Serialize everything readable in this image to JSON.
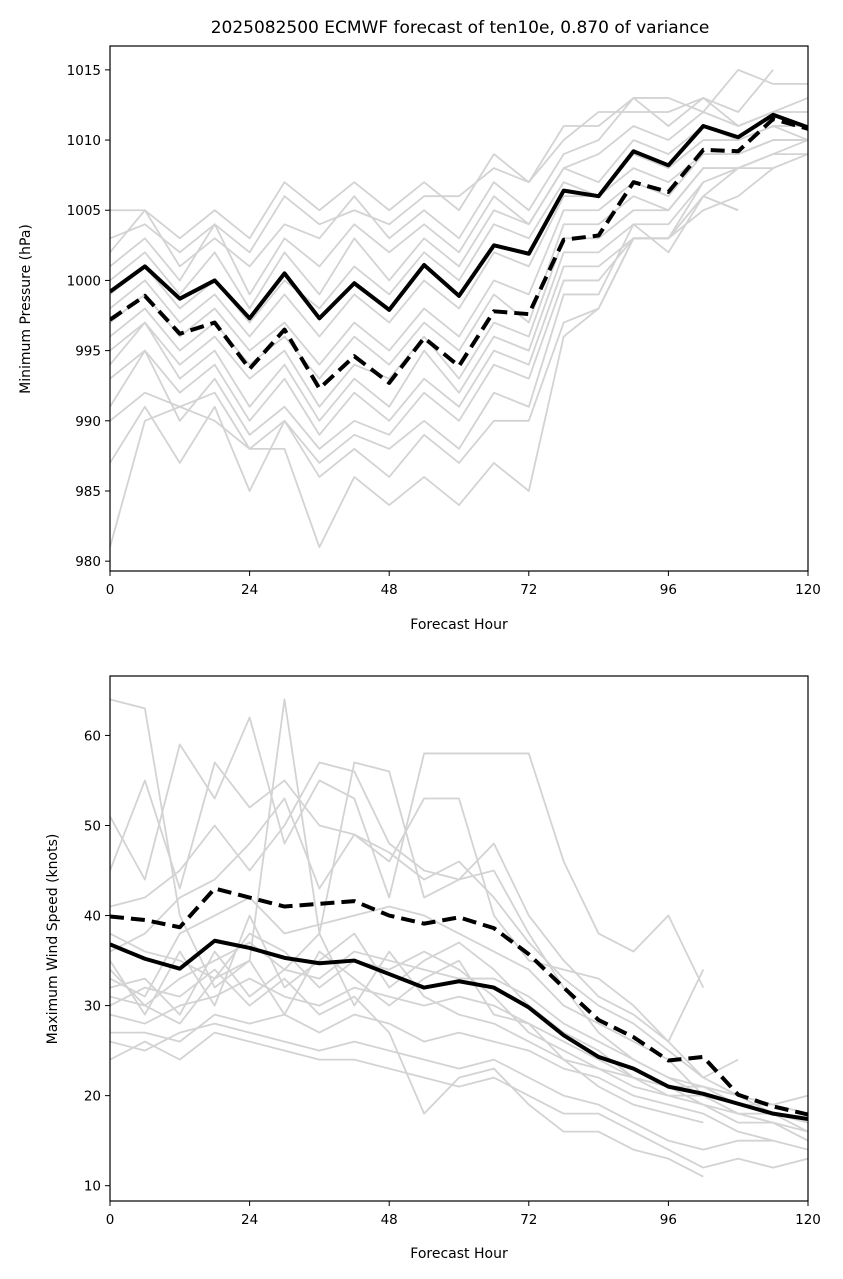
{
  "figure": {
    "title": "2025082500 ECMWF forecast of ten10e, 0.870 of variance"
  },
  "colors": {
    "ensemble": "#d3d3d3",
    "mean": "#000000",
    "background": "#ffffff"
  },
  "chart_data": [
    {
      "type": "line",
      "title": "2025082500 ECMWF forecast of ten10e, 0.870 of variance",
      "xlabel": "Forecast Hour",
      "ylabel": "Minimum Pressure (hPa)",
      "xlim": [
        0,
        120
      ],
      "ylim": [
        979.3,
        1016.7
      ],
      "xticks": [
        0,
        24,
        48,
        72,
        96,
        120
      ],
      "yticks": [
        980,
        985,
        990,
        995,
        1000,
        1005,
        1010,
        1015
      ],
      "x": [
        0,
        6,
        12,
        18,
        24,
        30,
        36,
        42,
        48,
        54,
        60,
        66,
        72,
        78,
        84,
        90,
        96,
        102,
        108,
        114,
        120
      ],
      "grid": false,
      "series": [
        {
          "style": "solid-thick",
          "values": [
            999.2,
            1001.0,
            998.7,
            1000.0,
            997.3,
            1000.5,
            997.3,
            999.8,
            997.9,
            1001.1,
            998.9,
            1002.5,
            1001.9,
            1006.4,
            1006.0,
            1009.2,
            1008.2,
            1011.0,
            1010.2,
            1011.8,
            1010.9
          ]
        },
        {
          "style": "dashed-thick",
          "values": [
            997.2,
            998.9,
            996.2,
            997.0,
            993.7,
            996.5,
            992.3,
            994.6,
            992.7,
            995.9,
            993.9,
            997.8,
            997.6,
            1002.9,
            1003.2,
            1007.0,
            1006.3,
            1009.3,
            1009.2,
            1011.5,
            1010.8
          ]
        },
        {
          "style": "ensemble",
          "values": [
            1005,
            1005,
            1003,
            1005,
            1003,
            1007,
            1005,
            1007,
            1005,
            1007,
            1005,
            1009,
            1007,
            1011,
            1011,
            1013,
            1013,
            1012,
            1015,
            1014,
            1014
          ]
        },
        {
          "style": "ensemble",
          "values": [
            1003,
            1004,
            1002,
            1004,
            1002,
            1006,
            1004,
            1005,
            1004,
            1006,
            1006,
            1008,
            1007,
            1010,
            1012,
            1012,
            1012,
            1013,
            1012,
            1015,
            null
          ]
        },
        {
          "style": "ensemble",
          "values": [
            1002,
            1005,
            1001,
            1003,
            1001,
            1004,
            1003,
            1006,
            1003,
            1005,
            1003,
            1007,
            1005,
            1009,
            1010,
            1013,
            1011,
            1013,
            1011,
            1012,
            1013
          ]
        },
        {
          "style": "ensemble",
          "values": [
            1001,
            1003,
            1000,
            1004,
            999,
            1003,
            1001,
            1004,
            1002,
            1004,
            1002,
            1006,
            1004,
            1008,
            1009,
            1011,
            1010,
            1012,
            1011,
            1012,
            1012
          ]
        },
        {
          "style": "ensemble",
          "values": [
            1000,
            1002,
            999,
            1002,
            998,
            1002,
            999,
            1003,
            1000,
            1003,
            1001,
            1005,
            1004,
            1008,
            1007,
            1010,
            1009,
            1011,
            1010,
            1011,
            1011
          ]
        },
        {
          "style": "ensemble",
          "values": [
            999,
            1001,
            998,
            1000,
            997,
            1000,
            998,
            1001,
            999,
            1002,
            1000,
            1004,
            1003,
            1007,
            1006,
            1009,
            1008,
            1010,
            1010,
            1011,
            1010
          ]
        },
        {
          "style": "ensemble",
          "values": [
            998,
            1000,
            997,
            999,
            996,
            999,
            996,
            999,
            997,
            1000,
            998,
            1002,
            1001,
            1006,
            1006,
            1008,
            1007,
            1009,
            1009,
            1010,
            1010
          ]
        },
        {
          "style": "ensemble",
          "values": [
            997,
            999,
            996,
            998,
            995,
            997,
            994,
            997,
            995,
            998,
            996,
            1000,
            999,
            1005,
            1005,
            1007,
            1006,
            1009,
            1009,
            1010,
            1010
          ]
        },
        {
          "style": "ensemble",
          "values": [
            996,
            998,
            995,
            997,
            994,
            996,
            993,
            996,
            994,
            997,
            995,
            999,
            997,
            1004,
            1004,
            1006,
            1005,
            1008,
            1008,
            1009,
            1010
          ]
        },
        {
          "style": "ensemble",
          "values": [
            995,
            997,
            994,
            996,
            993,
            995,
            991,
            994,
            993,
            996,
            993,
            997,
            996,
            1003,
            1003,
            1005,
            1005,
            1008,
            1008,
            1009,
            1009
          ]
        },
        {
          "style": "ensemble",
          "values": [
            994,
            997,
            993,
            995,
            991,
            994,
            990,
            993,
            991,
            995,
            992,
            996,
            995,
            1002,
            1002,
            1004,
            1004,
            1007,
            1008,
            1008,
            1009
          ]
        },
        {
          "style": "ensemble",
          "values": [
            993,
            995,
            992,
            994,
            990,
            993,
            989,
            992,
            990,
            993,
            991,
            995,
            994,
            1001,
            1001,
            1003,
            1003,
            1006,
            1005,
            null,
            null
          ]
        },
        {
          "style": "ensemble",
          "values": [
            991,
            995,
            990,
            993,
            989,
            991,
            988,
            990,
            989,
            992,
            990,
            994,
            993,
            1000,
            1000,
            1003,
            1003,
            1005,
            1006,
            1008,
            null
          ]
        },
        {
          "style": "ensemble",
          "values": [
            990,
            992,
            991,
            992,
            988,
            990,
            987,
            989,
            988,
            990,
            988,
            992,
            991,
            999,
            999,
            1004,
            1002,
            1006,
            1008,
            null,
            null
          ]
        },
        {
          "style": "ensemble",
          "values": [
            987,
            991,
            987,
            991,
            985,
            990,
            986,
            988,
            986,
            989,
            987,
            990,
            990,
            997,
            998,
            1003,
            1003,
            1007,
            null,
            null,
            null
          ]
        },
        {
          "style": "ensemble",
          "values": [
            981,
            990,
            991,
            990,
            988,
            988,
            981,
            986,
            984,
            986,
            984,
            987,
            985,
            996,
            998,
            1003,
            1003,
            1006,
            1005,
            null,
            null
          ]
        }
      ]
    },
    {
      "type": "line",
      "xlabel": "Forecast Hour",
      "ylabel": "Maximum Wind Speed (knots)",
      "xlim": [
        0,
        120
      ],
      "ylim": [
        8.3,
        66.6
      ],
      "xticks": [
        0,
        24,
        48,
        72,
        96,
        120
      ],
      "yticks": [
        10,
        20,
        30,
        40,
        50,
        60
      ],
      "x": [
        0,
        6,
        12,
        18,
        24,
        30,
        36,
        42,
        48,
        54,
        60,
        66,
        72,
        78,
        84,
        90,
        96,
        102,
        108,
        114,
        120
      ],
      "grid": false,
      "series": [
        {
          "style": "solid-thick",
          "values": [
            36.8,
            35.2,
            34.1,
            37.2,
            36.4,
            35.3,
            34.7,
            35.0,
            33.5,
            32.0,
            32.7,
            32.0,
            29.8,
            26.7,
            24.3,
            23.0,
            21.0,
            20.2,
            19.1,
            18.0,
            17.4
          ]
        },
        {
          "style": "dashed-thick",
          "values": [
            39.9,
            39.5,
            38.7,
            43.0,
            42.0,
            41.0,
            41.3,
            41.6,
            40.0,
            39.1,
            39.8,
            38.6,
            35.7,
            32.0,
            28.4,
            26.5,
            23.9,
            24.3,
            20.1,
            18.8,
            17.9
          ]
        },
        {
          "style": "ensemble",
          "values": [
            64,
            63,
            40,
            32,
            35,
            64,
            38,
            57,
            56,
            42,
            44,
            45,
            38,
            32,
            27,
            24,
            22,
            21,
            19,
            19,
            18
          ]
        },
        {
          "style": "ensemble",
          "values": [
            51,
            44,
            59,
            53,
            62,
            48,
            55,
            53,
            42,
            58,
            58,
            58,
            58,
            46,
            38,
            36,
            40,
            32,
            null,
            null,
            null
          ]
        },
        {
          "style": "ensemble",
          "values": [
            45,
            55,
            43,
            57,
            52,
            55,
            50,
            49,
            46,
            53,
            53,
            40,
            35,
            34,
            33,
            30,
            26,
            22,
            24,
            null,
            null
          ]
        },
        {
          "style": "ensemble",
          "values": [
            41,
            42,
            45,
            50,
            45,
            50,
            57,
            56,
            48,
            45,
            44,
            48,
            40,
            35,
            31,
            29,
            26,
            34,
            null,
            null,
            null
          ]
        },
        {
          "style": "ensemble",
          "values": [
            36,
            38,
            42,
            44,
            48,
            53,
            43,
            49,
            47,
            44,
            46,
            42,
            37,
            33,
            30,
            28,
            25,
            22,
            20,
            18,
            17
          ]
        },
        {
          "style": "ensemble",
          "values": [
            33,
            31,
            38,
            40,
            42,
            38,
            39,
            40,
            41,
            40,
            38,
            36,
            34,
            30,
            28,
            26,
            24,
            20,
            19,
            null,
            null
          ]
        },
        {
          "style": "ensemble",
          "values": [
            31,
            30,
            33,
            35,
            37,
            34,
            33,
            36,
            35,
            34,
            33,
            33,
            31,
            28,
            26,
            24,
            22,
            20,
            18,
            18,
            16
          ]
        },
        {
          "style": "ensemble",
          "values": [
            29,
            28,
            30,
            31,
            33,
            31,
            30,
            32,
            31,
            30,
            31,
            30,
            28,
            26,
            24,
            22,
            21,
            19,
            17,
            17,
            15
          ]
        },
        {
          "style": "ensemble",
          "values": [
            27,
            27,
            26,
            29,
            28,
            29,
            27,
            29,
            28,
            26,
            27,
            26,
            25,
            23,
            22,
            20,
            19,
            18,
            16,
            15,
            14
          ]
        },
        {
          "style": "ensemble",
          "values": [
            26,
            25,
            27,
            28,
            27,
            26,
            25,
            26,
            25,
            24,
            23,
            24,
            22,
            20,
            19,
            17,
            15,
            14,
            15,
            15,
            null
          ]
        },
        {
          "style": "ensemble",
          "values": [
            24,
            26,
            24,
            27,
            26,
            25,
            24,
            24,
            23,
            22,
            21,
            22,
            20,
            18,
            18,
            16,
            14,
            12,
            13,
            12,
            13
          ]
        },
        {
          "style": "ensemble",
          "values": [
            30,
            32,
            31,
            34,
            30,
            33,
            29,
            31,
            27,
            18,
            22,
            23,
            19,
            16,
            16,
            14,
            13,
            11,
            null,
            null,
            null
          ]
        },
        {
          "style": "ensemble",
          "values": [
            34,
            30,
            28,
            33,
            35,
            29,
            36,
            33,
            30,
            33,
            35,
            29,
            28,
            24,
            21,
            19,
            18,
            17,
            null,
            null,
            null
          ]
        },
        {
          "style": "ensemble",
          "values": [
            38,
            36,
            35,
            33,
            38,
            36,
            32,
            35,
            34,
            36,
            34,
            31,
            27,
            25,
            23,
            21,
            20,
            19,
            18,
            17,
            16
          ]
        },
        {
          "style": "ensemble",
          "values": [
            32,
            33,
            29,
            36,
            31,
            34,
            38,
            30,
            36,
            31,
            29,
            28,
            26,
            24,
            23,
            22,
            20,
            20,
            null,
            null,
            null
          ]
        },
        {
          "style": "ensemble",
          "values": [
            35,
            29,
            36,
            30,
            40,
            32,
            35,
            38,
            32,
            35,
            37,
            34,
            30,
            27,
            25,
            22,
            21,
            21,
            20,
            19,
            20
          ]
        }
      ]
    }
  ]
}
